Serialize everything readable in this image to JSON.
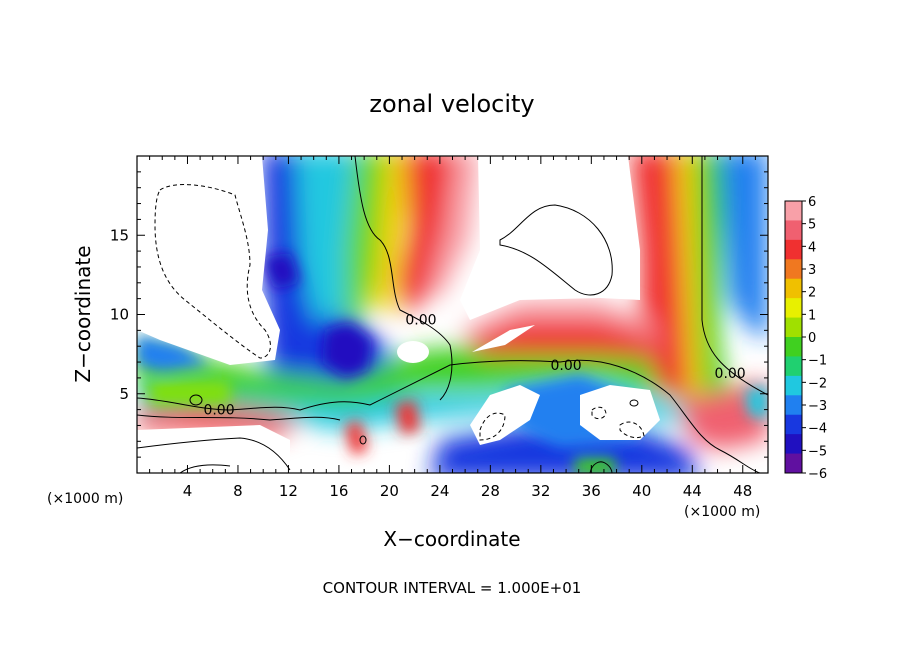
{
  "chart_data": {
    "type": "heatmap",
    "title": "zonal velocity",
    "xlabel": "X−coordinate",
    "ylabel": "Z−coordinate",
    "x_unit_left": "(×1000 m)",
    "x_unit_right": "(×1000 m)",
    "xlim": [
      0,
      50
    ],
    "ylim": [
      0,
      20
    ],
    "xticks": [
      4,
      8,
      12,
      16,
      20,
      24,
      28,
      32,
      36,
      40,
      44,
      48
    ],
    "yticks": [
      5,
      10,
      15
    ],
    "contour_label": "0.00",
    "contour_labels_at": [
      {
        "x": 22.5,
        "y": 9.7
      },
      {
        "x": 6.5,
        "y": 4.0
      },
      {
        "x": 34.0,
        "y": 6.8
      },
      {
        "x": 47.0,
        "y": 6.3
      }
    ],
    "colorbar": {
      "ticks": [
        "6",
        "5",
        "4",
        "3",
        "2",
        "1",
        "0",
        "−1",
        "−2",
        "−3",
        "−4",
        "−5",
        "−6"
      ],
      "colors": [
        "#f8a0a8",
        "#f06070",
        "#f03030",
        "#f07820",
        "#f0c000",
        "#e8f000",
        "#a0e000",
        "#40d020",
        "#20d070",
        "#20c8e0",
        "#2080f0",
        "#1838e0",
        "#2010c0",
        "#6010a0"
      ]
    },
    "footer": "CONTOUR INTERVAL = 1.000E+01"
  }
}
